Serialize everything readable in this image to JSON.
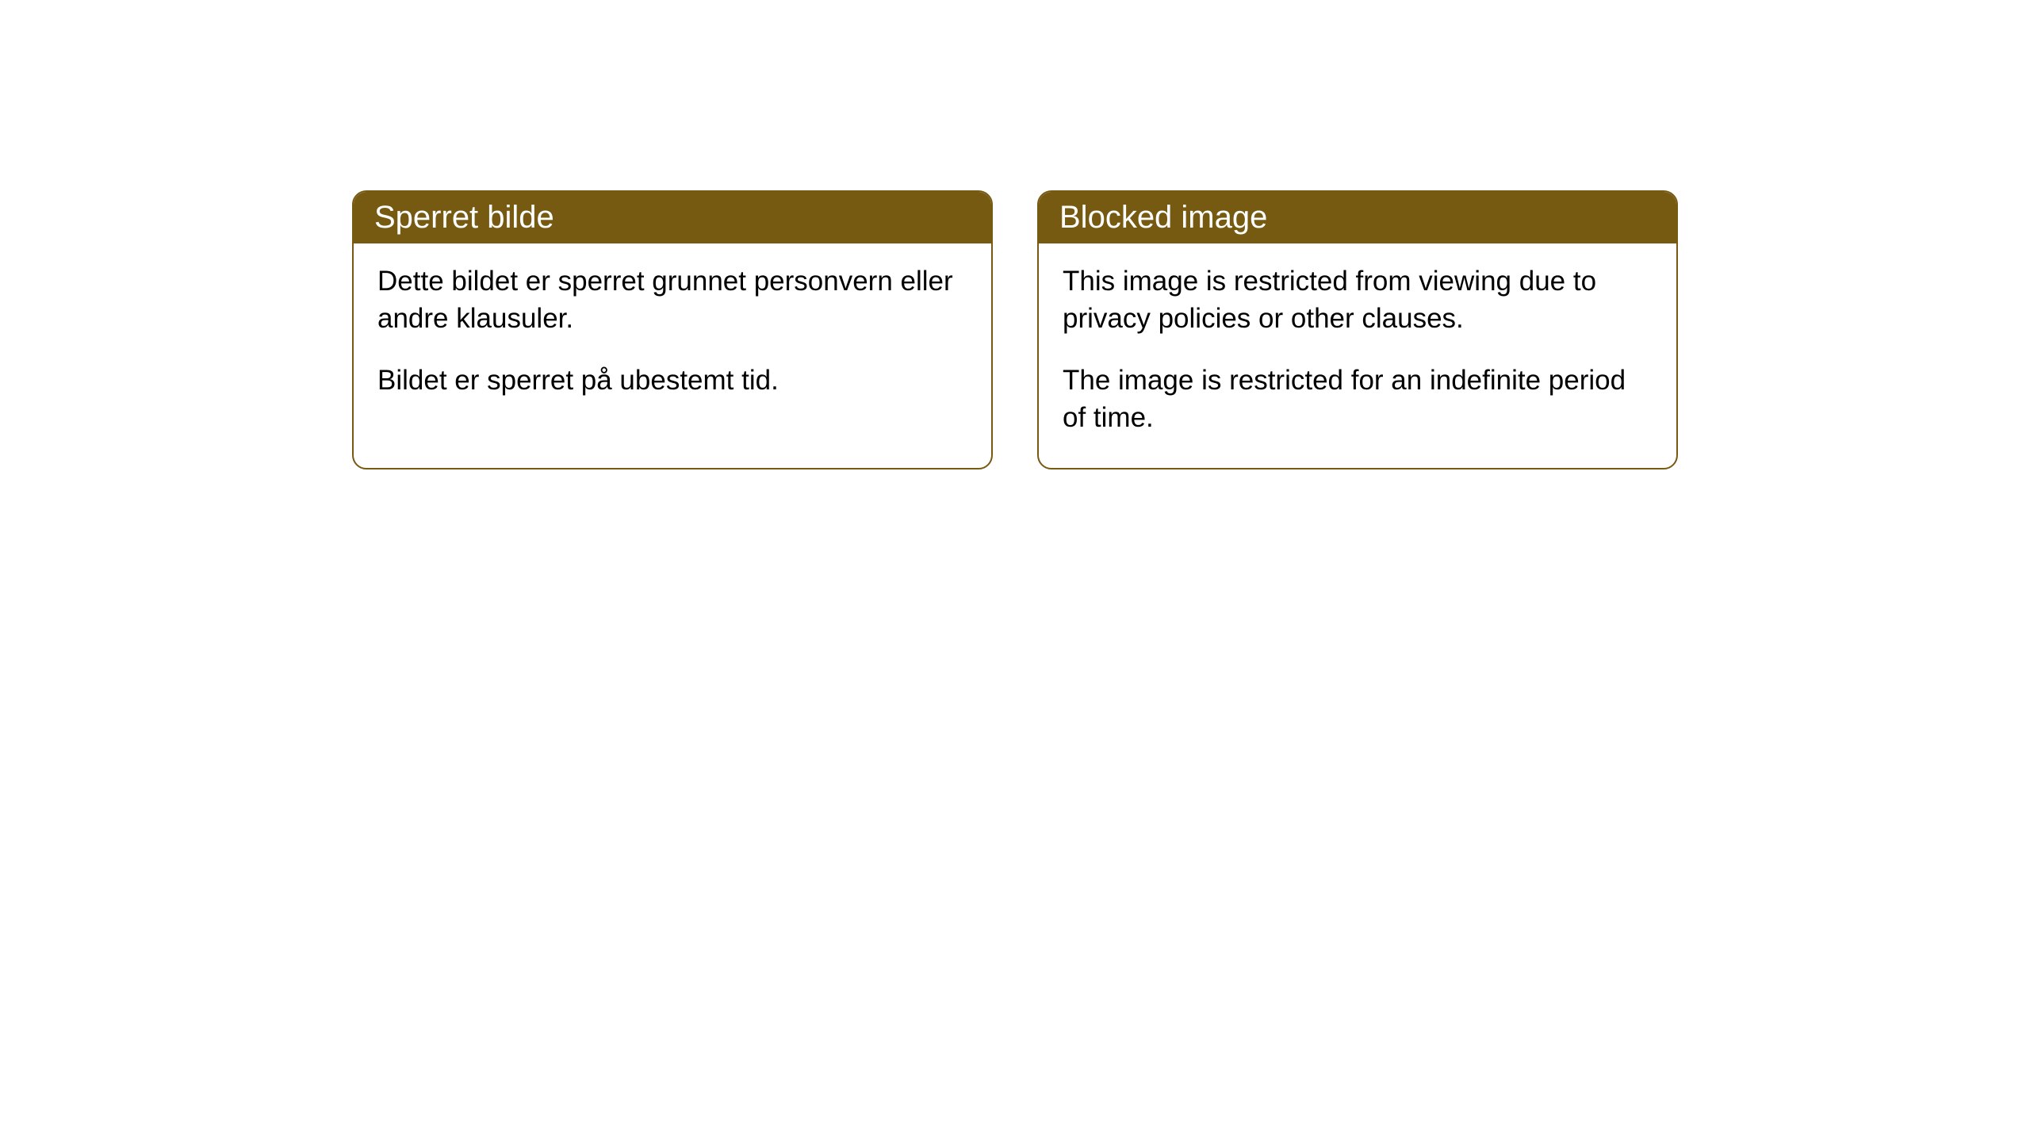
{
  "cards": [
    {
      "title": "Sperret bilde",
      "paragraph1": "Dette bildet er sperret grunnet personvern eller andre klausuler.",
      "paragraph2": "Bildet er sperret på ubestemt tid."
    },
    {
      "title": "Blocked image",
      "paragraph1": "This image is restricted from viewing due to privacy policies or other clauses.",
      "paragraph2": "The image is restricted for an indefinite period of time."
    }
  ],
  "styling": {
    "header_background": "#775a12",
    "header_text_color": "#ffffff",
    "border_color": "#775a12",
    "body_background": "#ffffff",
    "body_text_color": "#000000",
    "border_radius": 18,
    "header_fontsize": 40,
    "body_fontsize": 35
  }
}
